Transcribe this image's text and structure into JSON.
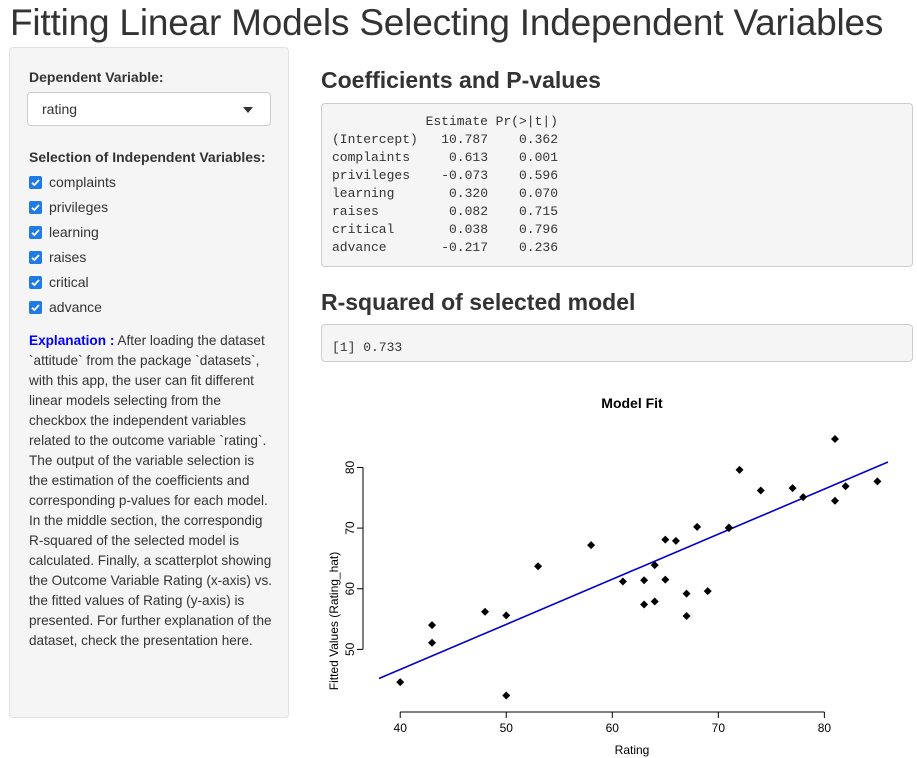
{
  "page": {
    "title": "Fitting Linear Models Selecting Independent Variables"
  },
  "sidebar": {
    "dependent_label": "Dependent Variable:",
    "dependent_value": "rating",
    "independent_label": "Selection of Independent Variables:",
    "checkboxes": [
      {
        "label": "complaints",
        "checked": true
      },
      {
        "label": "privileges",
        "checked": true
      },
      {
        "label": "learning",
        "checked": true
      },
      {
        "label": "raises",
        "checked": true
      },
      {
        "label": "critical",
        "checked": true
      },
      {
        "label": "advance",
        "checked": true
      }
    ],
    "explanation_heading": "Explanation :",
    "explanation_text": "After loading the dataset `attitude` from the package `datasets`, with this app, the user can fit different linear models selecting from the checkbox the independent variables related to the outcome variable `rating`. The output of the variable selection is the estimation of the coefficients and corresponding p-values for each model. In the middle section, the correspondig R-squared of the selected model is calculated. Finally, a scatterplot showing the Outcome Variable Rating (x-axis) vs. the fitted values of Rating (y-axis) is presented. For further explanation of the dataset, check the presentation here."
  },
  "coefficients": {
    "title": "Coefficients and P-values",
    "header": {
      "estimate": "Estimate",
      "p": "Pr(>|t|)"
    },
    "rows": [
      {
        "name": "(Intercept)",
        "estimate": "10.787",
        "p": "0.362"
      },
      {
        "name": "complaints",
        "estimate": "0.613",
        "p": "0.001"
      },
      {
        "name": "privileges",
        "estimate": "-0.073",
        "p": "0.596"
      },
      {
        "name": "learning",
        "estimate": "0.320",
        "p": "0.070"
      },
      {
        "name": "raises",
        "estimate": "0.082",
        "p": "0.715"
      },
      {
        "name": "critical",
        "estimate": "0.038",
        "p": "0.796"
      },
      {
        "name": "advance",
        "estimate": "-0.217",
        "p": "0.236"
      }
    ]
  },
  "rsquared": {
    "title": "R-squared of selected model",
    "output": "[1] 0.733"
  },
  "chart_data": {
    "type": "scatter",
    "title": "Model Fit",
    "xlabel": "Rating",
    "ylabel": "Fitted Values (Rating_hat)",
    "xlim": [
      38,
      86
    ],
    "ylim": [
      40.5,
      87
    ],
    "xticks": [
      40,
      50,
      60,
      70,
      80
    ],
    "yticks": [
      50,
      60,
      70,
      80
    ],
    "point_color": "#000000",
    "line_color": "#0000cc",
    "fit_line": {
      "x": [
        38,
        86
      ],
      "y": [
        45.2,
        80.9
      ]
    },
    "points": [
      {
        "x": 43,
        "y": 51.1
      },
      {
        "x": 63,
        "y": 61.4
      },
      {
        "x": 71,
        "y": 70.0
      },
      {
        "x": 61,
        "y": 61.2
      },
      {
        "x": 81,
        "y": 74.5
      },
      {
        "x": 43,
        "y": 54.0
      },
      {
        "x": 58,
        "y": 67.2
      },
      {
        "x": 71,
        "y": 70.1
      },
      {
        "x": 72,
        "y": 79.6
      },
      {
        "x": 67,
        "y": 59.2
      },
      {
        "x": 64,
        "y": 57.9
      },
      {
        "x": 67,
        "y": 55.5
      },
      {
        "x": 69,
        "y": 59.6
      },
      {
        "x": 68,
        "y": 70.2
      },
      {
        "x": 77,
        "y": 76.6
      },
      {
        "x": 81,
        "y": 84.7
      },
      {
        "x": 74,
        "y": 76.2
      },
      {
        "x": 65,
        "y": 68.1
      },
      {
        "x": 65,
        "y": 61.5
      },
      {
        "x": 50,
        "y": 55.6
      },
      {
        "x": 50,
        "y": 42.4
      },
      {
        "x": 64,
        "y": 63.9
      },
      {
        "x": 53,
        "y": 63.7
      },
      {
        "x": 40,
        "y": 44.6
      },
      {
        "x": 63,
        "y": 57.4
      },
      {
        "x": 66,
        "y": 67.9
      },
      {
        "x": 78,
        "y": 75.1
      },
      {
        "x": 48,
        "y": 56.2
      },
      {
        "x": 85,
        "y": 77.7
      },
      {
        "x": 82,
        "y": 76.9
      }
    ]
  }
}
